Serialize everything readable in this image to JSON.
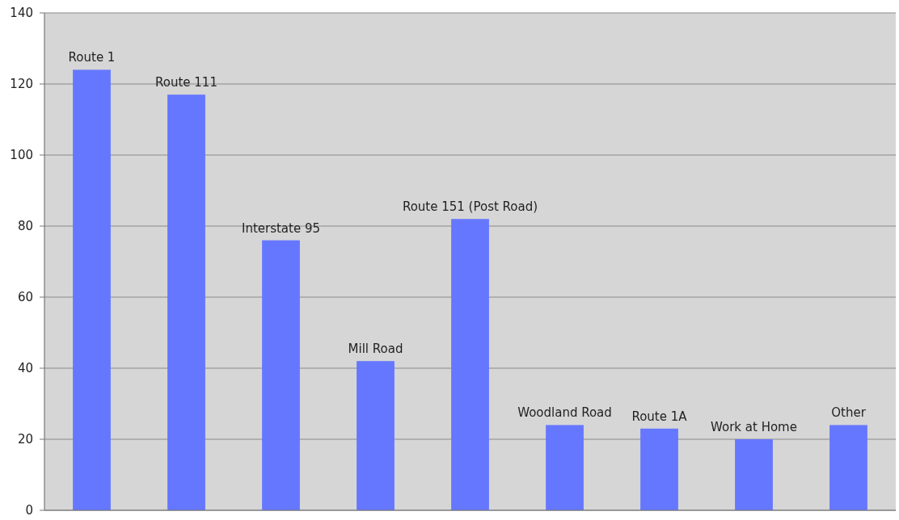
{
  "chart_data": {
    "type": "bar",
    "categories": [
      "Route 1",
      "Route 111",
      "Interstate 95",
      "Mill Road",
      "Route 151 (Post Road)",
      "Woodland Road",
      "Route 1A",
      "Work at Home",
      "Other"
    ],
    "values": [
      124,
      117,
      76,
      42,
      82,
      24,
      23,
      20,
      24
    ],
    "color": "#6677ff",
    "ylim": [
      0,
      140
    ],
    "yticks": [
      0,
      20,
      40,
      60,
      80,
      100,
      120,
      140
    ],
    "grid": "y"
  }
}
